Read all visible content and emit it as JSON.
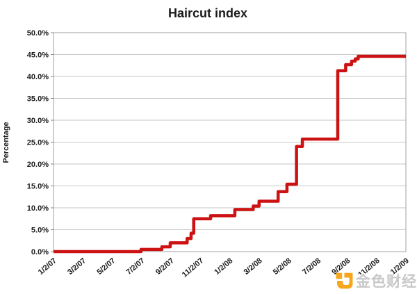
{
  "chart_data": {
    "type": "line",
    "line_style": "step-after",
    "title": "Haircut index",
    "xlabel": "",
    "ylabel": "Percentage",
    "grid": "horizontal-only",
    "legend": "none",
    "ylim": [
      0,
      50
    ],
    "y_tick_labels": [
      "0.0%",
      "5.0%",
      "10.0%",
      "15.0%",
      "20.0%",
      "25.0%",
      "30.0%",
      "35.0%",
      "40.0%",
      "45.0%",
      "50.0%"
    ],
    "y_tick_values": [
      0,
      5,
      10,
      15,
      20,
      25,
      30,
      35,
      40,
      45,
      50
    ],
    "xlim_months": [
      0,
      24
    ],
    "x_tick_labels": [
      "1/2/07",
      "3/2/07",
      "5/2/07",
      "7/2/07",
      "9/2/07",
      "11/2/07",
      "1/2/08",
      "3/2/08",
      "5/2/08",
      "7/2/08",
      "9/2/08",
      "11/2/08",
      "1/2/09"
    ],
    "x_tick_months": [
      0,
      2,
      4,
      6,
      8,
      10,
      12,
      14,
      16,
      18,
      20,
      22,
      24
    ],
    "series": [
      {
        "name": "Haircut index",
        "color": "#cc1212",
        "points_month_percent": [
          [
            0,
            0.0
          ],
          [
            5.96,
            0.5
          ],
          [
            7.38,
            1.1
          ],
          [
            7.95,
            2.0
          ],
          [
            9.1,
            3.0
          ],
          [
            9.37,
            4.2
          ],
          [
            9.55,
            7.5
          ],
          [
            10.7,
            8.2
          ],
          [
            12.35,
            9.6
          ],
          [
            13.6,
            10.4
          ],
          [
            14.0,
            11.5
          ],
          [
            15.3,
            13.7
          ],
          [
            15.9,
            15.4
          ],
          [
            16.55,
            24.0
          ],
          [
            16.95,
            25.7
          ],
          [
            19.36,
            41.3
          ],
          [
            19.9,
            42.7
          ],
          [
            20.3,
            43.5
          ],
          [
            20.55,
            44.0
          ],
          [
            20.75,
            44.6
          ],
          [
            24,
            44.6
          ]
        ]
      }
    ],
    "colors": {
      "line": "#cc1212",
      "gridline": "#c6c6c6",
      "plot_border": "#a0a0a0",
      "tick_mark": "#808080",
      "text": "#1a1a1a",
      "background": "#ffffff"
    }
  },
  "watermark": {
    "text": "金色财经",
    "logo": "jinse-logo",
    "logo_color": "#f7a71d",
    "text_color": "#c5c5c5"
  }
}
